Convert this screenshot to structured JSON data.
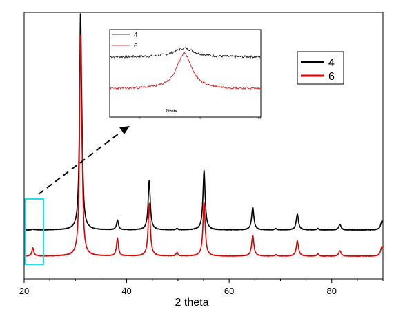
{
  "chart_data": {
    "type": "line",
    "xlabel": "2 theta",
    "x_range": [
      20,
      90
    ],
    "x_ticks": [
      20,
      40,
      60,
      80
    ],
    "grid": false,
    "legend_position": "top-right",
    "series": [
      {
        "name": "4",
        "color": "#000000",
        "baseline": 0.38,
        "noise": 0.004,
        "peaks": [
          {
            "x": 21.7,
            "height": 0.01,
            "width": 0.22
          },
          {
            "x": 31.0,
            "height": 3.0,
            "width": 0.22
          },
          {
            "x": 31.3,
            "height": 0.55,
            "width": 0.22
          },
          {
            "x": 38.2,
            "height": 0.14,
            "width": 0.22
          },
          {
            "x": 44.4,
            "height": 0.72,
            "width": 0.25
          },
          {
            "x": 49.8,
            "height": 0.02,
            "width": 0.22
          },
          {
            "x": 55.1,
            "height": 0.86,
            "width": 0.26
          },
          {
            "x": 64.6,
            "height": 0.33,
            "width": 0.26
          },
          {
            "x": 69.1,
            "height": 0.02,
            "width": 0.22
          },
          {
            "x": 73.3,
            "height": 0.23,
            "width": 0.26
          },
          {
            "x": 77.3,
            "height": 0.02,
            "width": 0.22
          },
          {
            "x": 81.6,
            "height": 0.08,
            "width": 0.26
          },
          {
            "x": 89.8,
            "height": 0.13,
            "width": 0.3
          }
        ]
      },
      {
        "name": "6",
        "color": "#e00000",
        "baseline": 0.0,
        "noise": 0.004,
        "peaks": [
          {
            "x": 21.7,
            "height": 0.12,
            "width": 0.22
          },
          {
            "x": 31.0,
            "height": 3.0,
            "width": 0.22
          },
          {
            "x": 31.3,
            "height": 0.6,
            "width": 0.22
          },
          {
            "x": 38.2,
            "height": 0.26,
            "width": 0.22
          },
          {
            "x": 44.4,
            "height": 0.77,
            "width": 0.25
          },
          {
            "x": 49.8,
            "height": 0.05,
            "width": 0.22
          },
          {
            "x": 55.1,
            "height": 0.78,
            "width": 0.26
          },
          {
            "x": 64.6,
            "height": 0.3,
            "width": 0.26
          },
          {
            "x": 69.1,
            "height": 0.02,
            "width": 0.22
          },
          {
            "x": 73.3,
            "height": 0.22,
            "width": 0.26
          },
          {
            "x": 77.3,
            "height": 0.03,
            "width": 0.22
          },
          {
            "x": 81.6,
            "height": 0.08,
            "width": 0.26
          },
          {
            "x": 89.8,
            "height": 0.14,
            "width": 0.3
          }
        ]
      }
    ],
    "highlight_region": {
      "x_range": [
        20.2,
        23.8
      ],
      "color": "#22e0e8"
    },
    "inset": {
      "xlabel": "2 theta",
      "x_ticks": [
        "21",
        "22",
        "23"
      ],
      "series": [
        {
          "name": "4",
          "color": "#000000"
        },
        {
          "name": "6",
          "color": "#e00000"
        }
      ]
    }
  }
}
